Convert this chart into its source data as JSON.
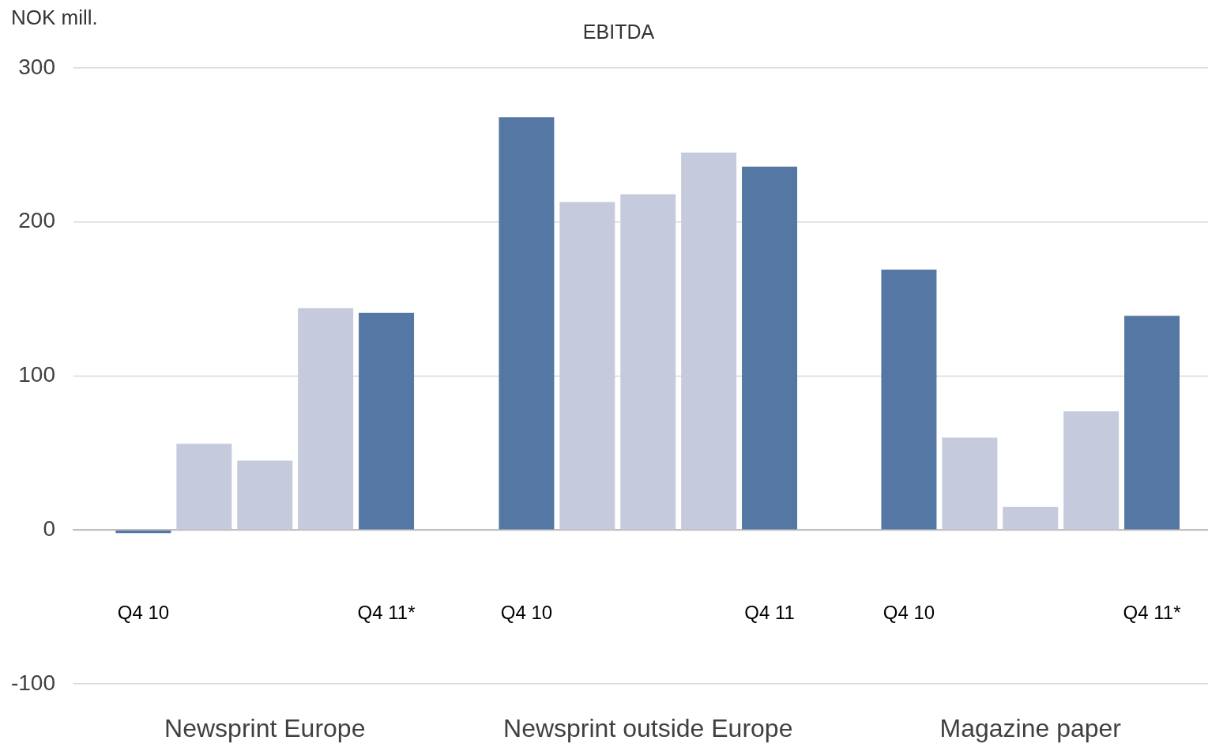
{
  "chart_data": [
    {
      "type": "bar",
      "ylabel": "NOK mill.",
      "xlabel": "Newsprint Europe",
      "categories": [
        "Q4 10",
        null,
        null,
        null,
        "Q4 11*"
      ],
      "values": [
        -2,
        56,
        45,
        144,
        141
      ],
      "colors": [
        "#5577a3",
        "#c5cbdd",
        "#c5cbdd",
        "#c5cbdd",
        "#5577a3"
      ],
      "ylim": [
        -100,
        300
      ],
      "yticks": [
        -100,
        0,
        100,
        200,
        300
      ],
      "grid": "y"
    },
    {
      "type": "bar",
      "title": "EBITDA",
      "xlabel": "Newsprint outside Europe",
      "categories": [
        "Q4 10",
        null,
        null,
        null,
        "Q4 11"
      ],
      "values": [
        268,
        213,
        218,
        245,
        236
      ],
      "colors": [
        "#5577a3",
        "#c5cbdd",
        "#c5cbdd",
        "#c5cbdd",
        "#5577a3"
      ],
      "ylim": [
        -100,
        300
      ],
      "yticks": [
        -100,
        0,
        100,
        200,
        300
      ],
      "grid": "y",
      "tick_labels": "x"
    },
    {
      "type": "bar",
      "xlabel": "Magazine paper",
      "categories": [
        "Q4 10",
        null,
        null,
        null,
        "Q4 11*"
      ],
      "values": [
        169,
        60,
        15,
        77,
        139
      ],
      "colors": [
        "#5577a3",
        "#c5cbdd",
        "#c5cbdd",
        "#c5cbdd",
        "#5577a3"
      ],
      "ylim": [
        -100,
        300
      ],
      "yticks": [
        -100,
        0,
        100,
        200,
        300
      ],
      "grid": "y",
      "tick_labels": "x"
    }
  ]
}
